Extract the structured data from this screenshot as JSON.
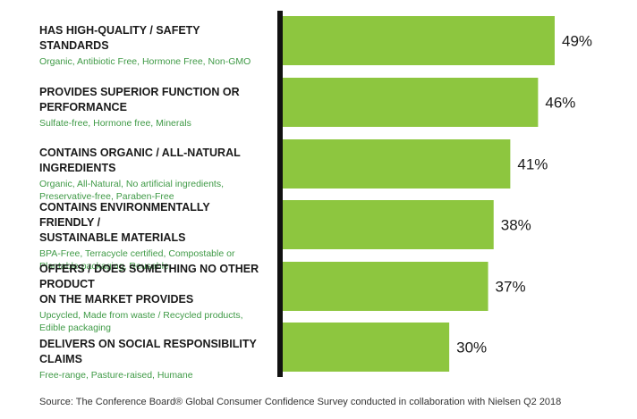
{
  "chart_data": {
    "type": "bar",
    "orientation": "horizontal",
    "categories": [
      "HAS HIGH-QUALITY / SAFETY STANDARDS",
      "PROVIDES SUPERIOR FUNCTION OR PERFORMANCE",
      "CONTAINS ORGANIC / ALL-NATURAL INGREDIENTS",
      "CONTAINS ENVIRONMENTALLY FRIENDLY / SUSTAINABLE MATERIALS",
      "OFFERS / DOES SOMETHING NO OTHER PRODUCT ON THE MARKET PROVIDES",
      "DELIVERS ON SOCIAL RESPONSIBILITY CLAIMS"
    ],
    "title_lines": [
      [
        "HAS HIGH-QUALITY / SAFETY STANDARDS"
      ],
      [
        "PROVIDES SUPERIOR FUNCTION OR PERFORMANCE"
      ],
      [
        "CONTAINS ORGANIC / ALL-NATURAL INGREDIENTS"
      ],
      [
        "CONTAINS ENVIRONMENTALLY FRIENDLY /",
        "SUSTAINABLE MATERIALS"
      ],
      [
        "OFFERS / DOES SOMETHING NO OTHER PRODUCT",
        "ON THE MARKET PROVIDES"
      ],
      [
        "DELIVERS ON SOCIAL RESPONSIBILITY CLAIMS"
      ]
    ],
    "subtitles": [
      [
        "Organic, Antibiotic Free, Hormone Free, Non-GMO"
      ],
      [
        "Sulfate-free, Hormone free, Minerals"
      ],
      [
        "Organic, All-Natural, No artificial ingredients,",
        "Preservative-free, Paraben-Free"
      ],
      [
        "BPA-Free, Terracycle certified, Compostable or",
        "Plantable packaging, Reusable"
      ],
      [
        "Upcycled, Made from waste / Recycled products,",
        "Edible packaging"
      ],
      [
        "Free-range, Pasture-raised, Humane"
      ]
    ],
    "values": [
      49,
      46,
      41,
      38,
      37,
      30
    ],
    "value_labels": [
      "49%",
      "46%",
      "41%",
      "38%",
      "37%",
      "30%"
    ],
    "unit": "%",
    "xlim": [
      0,
      49
    ],
    "colors": {
      "bar": "#8dc63f",
      "axis": "#111111",
      "subtitle": "#3f9a46",
      "label": "#1a1a1a"
    }
  },
  "source": "Source: The Conference Board® Global Consumer Confidence Survey conducted in collaboration with Nielsen  Q2 2018"
}
